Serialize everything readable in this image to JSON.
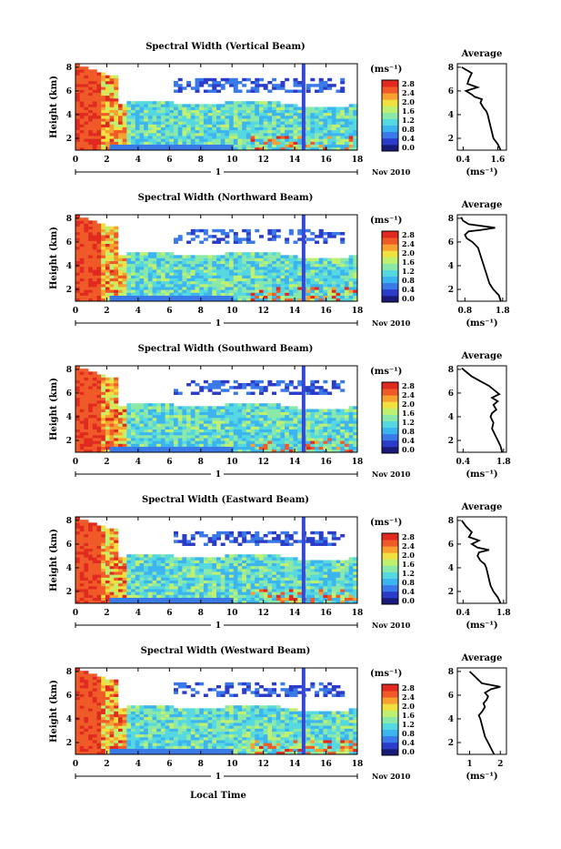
{
  "xlabel": "Local Time",
  "date_parts": {
    "day": "1",
    "month_year": "Nov 2010"
  },
  "colorbar_unit": "(ms⁻¹)",
  "colorbar_ticks": [
    "2.8",
    "2.4",
    "2.0",
    "1.6",
    "1.2",
    "0.8",
    "0.4",
    "0.0"
  ],
  "colormap": [
    "#1a1a7a",
    "#2a3cc8",
    "#3a7ae8",
    "#3cb4f0",
    "#56d8e0",
    "#8ae8a8",
    "#c0f070",
    "#f0e040",
    "#f8a030",
    "#f05a28",
    "#e02a20"
  ],
  "chart_data": [
    {
      "type": "heatmap",
      "title": "Spectral Width (Vertical Beam)",
      "ylabel": "Height (km)",
      "x_ticks": [
        "0",
        "2",
        "4",
        "6",
        "8",
        "10",
        "12",
        "14",
        "16",
        "18"
      ],
      "y_ticks": [
        "2",
        "4",
        "6",
        "8"
      ],
      "xlim": [
        0,
        18
      ],
      "ylim": [
        1,
        8.3
      ],
      "profile": {
        "title": "Average",
        "xlabel": "(ms⁻¹)",
        "x_ticks": [
          "0.4",
          "1.6"
        ],
        "y_ticks": [
          "2",
          "4",
          "6",
          "8"
        ],
        "xlim": [
          0.2,
          1.9
        ],
        "ylim": [
          1,
          8.3
        ],
        "x": [
          1.7,
          1.6,
          1.45,
          1.4,
          1.35,
          1.3,
          1.25,
          1.2,
          1.1,
          1.0,
          1.05,
          0.8,
          0.7,
          0.5,
          0.9,
          0.55,
          0.6,
          0.7,
          0.35
        ],
        "y": [
          1.0,
          1.5,
          2.0,
          2.5,
          3.0,
          3.5,
          4.0,
          4.3,
          4.6,
          5.0,
          5.3,
          5.5,
          5.7,
          6.0,
          6.3,
          6.6,
          7.0,
          7.5,
          8.0
        ]
      }
    },
    {
      "type": "heatmap",
      "title": "Spectral Width (Northward Beam)",
      "ylabel": "Height (km)",
      "x_ticks": [
        "0",
        "2",
        "4",
        "6",
        "8",
        "10",
        "12",
        "14",
        "16",
        "18"
      ],
      "y_ticks": [
        "2",
        "4",
        "6",
        "8"
      ],
      "xlim": [
        0,
        18
      ],
      "ylim": [
        1,
        8.3
      ],
      "profile": {
        "title": "Average",
        "xlabel": "(ms⁻¹)",
        "x_ticks": [
          "0.8",
          "1.8"
        ],
        "y_ticks": [
          "2",
          "4",
          "6",
          "8"
        ],
        "xlim": [
          0.6,
          1.9
        ],
        "ylim": [
          1,
          8.3
        ],
        "x": [
          1.75,
          1.7,
          1.55,
          1.45,
          1.4,
          1.35,
          1.3,
          1.25,
          1.2,
          1.15,
          1.0,
          0.85,
          0.8,
          0.9,
          1.2,
          1.6,
          0.9,
          0.75,
          0.7
        ],
        "y": [
          1.0,
          1.5,
          2.0,
          2.5,
          3.0,
          3.5,
          4.0,
          4.5,
          5.0,
          5.5,
          6.0,
          6.3,
          6.6,
          6.9,
          7.0,
          7.2,
          7.5,
          7.8,
          8.1
        ]
      }
    },
    {
      "type": "heatmap",
      "title": "Spectral Width (Southward Beam)",
      "ylabel": "Height (km)",
      "x_ticks": [
        "0",
        "2",
        "4",
        "6",
        "8",
        "10",
        "12",
        "14",
        "16",
        "18"
      ],
      "y_ticks": [
        "2",
        "4",
        "6",
        "8"
      ],
      "xlim": [
        0,
        18
      ],
      "ylim": [
        1,
        8.3
      ],
      "profile": {
        "title": "Average",
        "xlabel": "(ms⁻¹)",
        "x_ticks": [
          "0.4",
          "1.8"
        ],
        "y_ticks": [
          "2",
          "4",
          "6",
          "8"
        ],
        "xlim": [
          0.2,
          1.9
        ],
        "ylim": [
          1,
          8.3
        ],
        "x": [
          1.75,
          1.7,
          1.6,
          1.5,
          1.4,
          1.45,
          1.35,
          1.4,
          1.55,
          1.45,
          1.6,
          1.4,
          1.65,
          1.5,
          1.3,
          1.0,
          0.7,
          0.5,
          0.35
        ],
        "y": [
          1.0,
          1.5,
          2.0,
          2.5,
          3.0,
          3.5,
          4.0,
          4.3,
          4.6,
          5.0,
          5.3,
          5.6,
          5.9,
          6.2,
          6.6,
          7.0,
          7.4,
          7.8,
          8.1
        ]
      }
    },
    {
      "type": "heatmap",
      "title": "Spectral Width (Eastward Beam)",
      "ylabel": "Height (km)",
      "x_ticks": [
        "0",
        "2",
        "4",
        "6",
        "8",
        "10",
        "12",
        "14",
        "16",
        "18"
      ],
      "y_ticks": [
        "2",
        "4",
        "6",
        "8"
      ],
      "xlim": [
        0,
        18
      ],
      "ylim": [
        1,
        8.3
      ],
      "profile": {
        "title": "Average",
        "xlabel": "(ms⁻¹)",
        "x_ticks": [
          "0.4",
          "1.8"
        ],
        "y_ticks": [
          "2",
          "4",
          "6",
          "8"
        ],
        "xlim": [
          0.2,
          1.9
        ],
        "ylim": [
          1,
          8.3
        ],
        "x": [
          1.7,
          1.6,
          1.45,
          1.35,
          1.3,
          1.25,
          1.2,
          1.15,
          1.0,
          0.9,
          0.95,
          1.3,
          0.9,
          0.7,
          0.95,
          0.6,
          0.7,
          0.5,
          0.35
        ],
        "y": [
          1.0,
          1.5,
          2.0,
          2.5,
          3.0,
          3.5,
          4.0,
          4.3,
          4.6,
          5.0,
          5.3,
          5.5,
          5.7,
          6.0,
          6.3,
          6.6,
          7.0,
          7.5,
          8.0
        ]
      }
    },
    {
      "type": "heatmap",
      "title": "Spectral Width (Westward Beam)",
      "ylabel": "Height (km)",
      "x_ticks": [
        "0",
        "2",
        "4",
        "6",
        "8",
        "10",
        "12",
        "14",
        "16",
        "18"
      ],
      "y_ticks": [
        "2",
        "4",
        "6",
        "8"
      ],
      "xlim": [
        0,
        18
      ],
      "ylim": [
        1,
        8.3
      ],
      "profile": {
        "title": "Average",
        "xlabel": "(ms⁻¹)",
        "x_ticks": [
          "1",
          "2"
        ],
        "y_ticks": [
          "2",
          "4",
          "6",
          "8"
        ],
        "xlim": [
          0.6,
          2.2
        ],
        "ylim": [
          1,
          8.3
        ],
        "x": [
          1.8,
          1.7,
          1.6,
          1.5,
          1.45,
          1.4,
          1.35,
          1.3,
          1.4,
          1.5,
          1.45,
          1.55,
          1.6,
          1.5,
          1.7,
          2.0,
          1.4,
          1.2,
          1.0
        ],
        "y": [
          1.0,
          1.5,
          2.0,
          2.5,
          3.0,
          3.5,
          4.0,
          4.3,
          4.6,
          5.0,
          5.3,
          5.6,
          5.9,
          6.2,
          6.5,
          6.7,
          7.0,
          7.5,
          8.0
        ]
      }
    }
  ]
}
